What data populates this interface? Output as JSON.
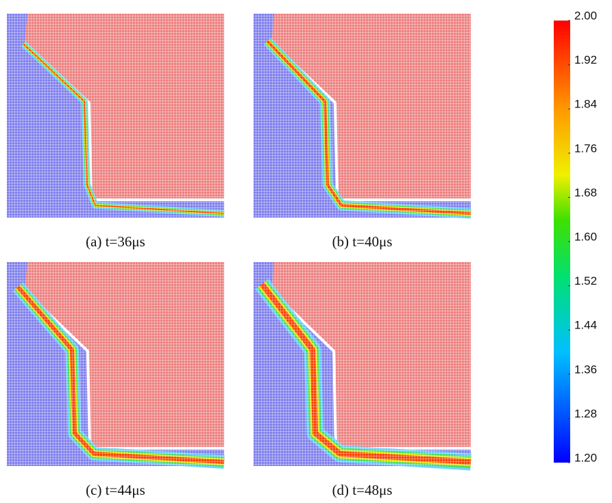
{
  "panels": [
    {
      "caption": "(a) t=36μs"
    },
    {
      "caption": "(b) t=40μs"
    },
    {
      "caption": "(c) t=44μs"
    },
    {
      "caption": "(d) t=48μs"
    }
  ],
  "colorbar": {
    "lim": [
      1.2,
      2.0
    ],
    "ticks": [
      {
        "value": 2.0,
        "label": "2.00"
      },
      {
        "value": 1.92,
        "label": "1.92"
      },
      {
        "value": 1.84,
        "label": "1.84"
      },
      {
        "value": 1.76,
        "label": "1.76"
      },
      {
        "value": 1.68,
        "label": "1.68"
      },
      {
        "value": 1.6,
        "label": "1.60"
      },
      {
        "value": 1.52,
        "label": "1.52"
      },
      {
        "value": 1.44,
        "label": "1.44"
      },
      {
        "value": 1.36,
        "label": "1.36"
      },
      {
        "value": 1.28,
        "label": "1.28"
      },
      {
        "value": 1.2,
        "label": "1.20"
      }
    ]
  }
}
